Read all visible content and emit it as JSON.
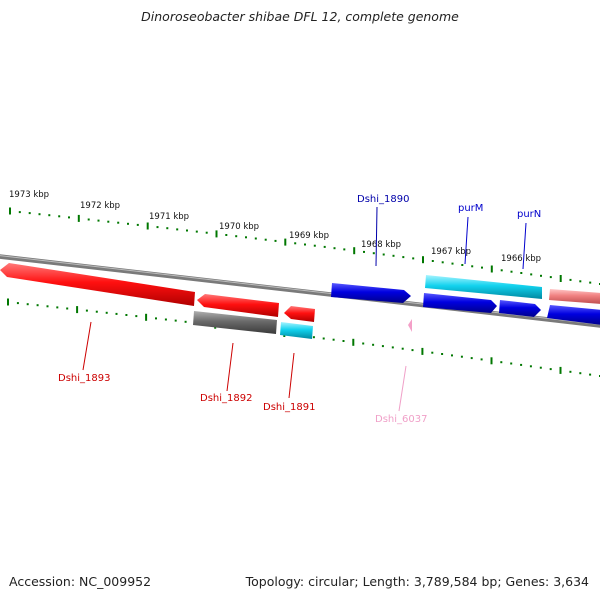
{
  "title": "Dinoroseobacter shibae DFL 12, complete genome",
  "footer": {
    "accession": "Accession: NC_009952",
    "summary": "Topology: circular; Length: 3,789,584 bp; Genes: 3,634"
  },
  "ruler": {
    "labels": [
      "1973 kbp",
      "1972 kbp",
      "1971 kbp",
      "1970 kbp",
      "1969 kbp",
      "1968 kbp",
      "1967 kbp",
      "1966 kbp"
    ]
  },
  "genes": [
    {
      "label": "Dshi_1893",
      "color": "#cc0000"
    },
    {
      "label": "Dshi_1892",
      "color": "#cc0000"
    },
    {
      "label": "Dshi_1891",
      "color": "#cc0000"
    },
    {
      "label": "Dshi_6037",
      "color": "#f0a0c8"
    },
    {
      "label": "Dshi_1890",
      "color": "#0000aa"
    },
    {
      "label": "purM",
      "color": "#0000cc"
    },
    {
      "label": "purN",
      "color": "#0000cc"
    }
  ],
  "colors": {
    "forward_cds": "#0000e0",
    "reverse_cds": "#e60000",
    "rna": "#00c8e6",
    "pseudo": "#6e6e6e",
    "ticks": "#007700"
  }
}
